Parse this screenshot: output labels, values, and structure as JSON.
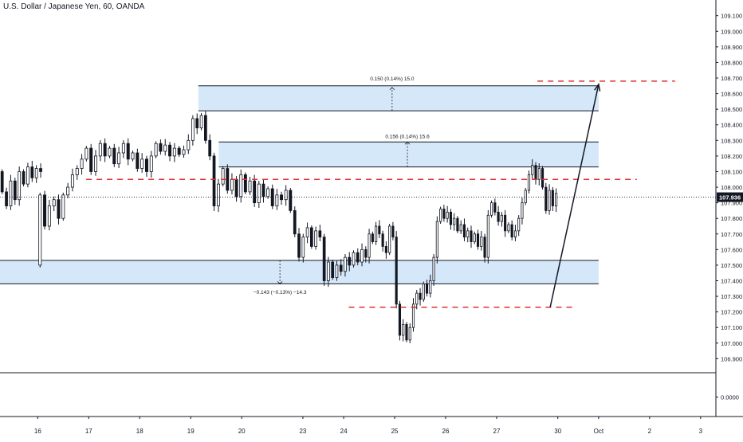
{
  "header": {
    "title": "U.S. Dollar / Japanese Yen, 60, OANDA"
  },
  "colors": {
    "up": "#ffffff",
    "down": "#131722",
    "outline": "#131722",
    "zone_fill": "#d5e8f9",
    "zone_stroke": "#131722",
    "level_line": "#e03131",
    "last_price_bg": "#131722",
    "grid_axis": "#131722",
    "text": "#131722"
  },
  "chart_data": {
    "type": "candlestick",
    "title": "U.S. Dollar / Japanese Yen, 60, OANDA",
    "ylim": [
      106.81,
      109.17
    ],
    "y_ticks": [
      {
        "value": 109.1,
        "label": "109.100"
      },
      {
        "value": 109.0,
        "label": "109.000"
      },
      {
        "value": 108.9,
        "label": "108.900"
      },
      {
        "value": 108.8,
        "label": "108.800"
      },
      {
        "value": 108.7,
        "label": "108.700"
      },
      {
        "value": 108.6,
        "label": "108.600"
      },
      {
        "value": 108.5,
        "label": "108.500"
      },
      {
        "value": 108.4,
        "label": "108.400"
      },
      {
        "value": 108.3,
        "label": "108.300"
      },
      {
        "value": 108.2,
        "label": "108.200"
      },
      {
        "value": 108.1,
        "label": "108.100"
      },
      {
        "value": 108.0,
        "label": "108.000"
      },
      {
        "value": 107.9,
        "label": "107.900"
      },
      {
        "value": 107.8,
        "label": "107.800"
      },
      {
        "value": 107.7,
        "label": "107.700"
      },
      {
        "value": 107.6,
        "label": "107.600"
      },
      {
        "value": 107.5,
        "label": "107.500"
      },
      {
        "value": 107.4,
        "label": "107.400"
      },
      {
        "value": 107.3,
        "label": "107.300"
      },
      {
        "value": 107.2,
        "label": "107.200"
      },
      {
        "value": 107.1,
        "label": "107.100"
      },
      {
        "value": 107.0,
        "label": "107.000"
      },
      {
        "value": 106.9,
        "label": "106.900"
      }
    ],
    "last_price": {
      "value": 107.936,
      "label": "107.936"
    },
    "indicator_pane": {
      "ylim": [
        -1,
        1
      ],
      "tick": {
        "value": 0,
        "label": "0.0000"
      }
    },
    "x_ticks": [
      {
        "x": 0.6,
        "label": "16"
      },
      {
        "x": 1.6,
        "label": "17"
      },
      {
        "x": 2.6,
        "label": "18"
      },
      {
        "x": 3.6,
        "label": "19"
      },
      {
        "x": 4.6,
        "label": "20"
      },
      {
        "x": 5.8,
        "label": "23"
      },
      {
        "x": 6.6,
        "label": "24"
      },
      {
        "x": 7.6,
        "label": "25"
      },
      {
        "x": 8.6,
        "label": "26"
      },
      {
        "x": 9.6,
        "label": "27"
      },
      {
        "x": 10.8,
        "label": "30"
      },
      {
        "x": 11.6,
        "label": "Oct"
      },
      {
        "x": 12.6,
        "label": "2"
      },
      {
        "x": 13.6,
        "label": "3"
      }
    ],
    "xlim": [
      -0.14,
      13.9
    ],
    "series": [
      {
        "start": -0.14,
        "end": 0.7,
        "points": [
          [
            108.1,
            107.97
          ],
          [
            107.97,
            107.88
          ],
          [
            107.88,
            108.04
          ],
          [
            108.04,
            107.92
          ],
          [
            107.92,
            108.1
          ],
          [
            108.1,
            108.02
          ],
          [
            108.02,
            108.13
          ],
          [
            108.13,
            108.06
          ],
          [
            108.06,
            108.12
          ],
          [
            108.12,
            108.1
          ]
        ]
      },
      {
        "start": 0.6,
        "end": 3.6,
        "points": [
          [
            107.5,
            107.95
          ],
          [
            107.95,
            107.75
          ],
          [
            107.75,
            107.88
          ],
          [
            107.88,
            107.92
          ],
          [
            107.92,
            107.8
          ],
          [
            107.8,
            107.95
          ],
          [
            107.95,
            108.0
          ],
          [
            108.0,
            108.08
          ],
          [
            108.08,
            108.12
          ],
          [
            108.12,
            108.18
          ],
          [
            108.18,
            108.25
          ],
          [
            108.25,
            108.1
          ],
          [
            108.1,
            108.2
          ],
          [
            108.2,
            108.28
          ],
          [
            108.28,
            108.2
          ],
          [
            108.2,
            108.25
          ],
          [
            108.25,
            108.15
          ],
          [
            108.15,
            108.22
          ],
          [
            108.22,
            108.28
          ],
          [
            108.28,
            108.18
          ],
          [
            108.18,
            108.22
          ],
          [
            108.22,
            108.12
          ],
          [
            108.12,
            108.18
          ],
          [
            108.18,
            108.1
          ],
          [
            108.1,
            108.2
          ],
          [
            108.2,
            108.28
          ],
          [
            108.28,
            108.23
          ],
          [
            108.23,
            108.27
          ],
          [
            108.27,
            108.2
          ],
          [
            108.2,
            108.25
          ],
          [
            108.25,
            108.21
          ],
          [
            108.21,
            108.24
          ],
          [
            108.24,
            108.3
          ]
        ]
      },
      {
        "start": 3.6,
        "end": 4.1,
        "points": [
          [
            108.3,
            108.44
          ],
          [
            108.44,
            108.38
          ],
          [
            108.38,
            108.46
          ],
          [
            108.46,
            108.3
          ],
          [
            108.3,
            108.2
          ],
          [
            108.2,
            107.88
          ]
        ]
      },
      {
        "start": 4.1,
        "end": 5.6,
        "points": [
          [
            107.88,
            108.02
          ],
          [
            108.02,
            108.12
          ],
          [
            108.12,
            107.98
          ],
          [
            107.98,
            108.05
          ],
          [
            108.05,
            107.94
          ],
          [
            107.94,
            108.08
          ],
          [
            108.08,
            107.97
          ],
          [
            107.97,
            108.04
          ],
          [
            108.04,
            107.9
          ],
          [
            107.9,
            108.02
          ],
          [
            108.02,
            107.94
          ],
          [
            107.94,
            107.99
          ],
          [
            107.99,
            107.88
          ],
          [
            107.88,
            107.95
          ],
          [
            107.95,
            107.92
          ],
          [
            107.92,
            107.98
          ],
          [
            107.98,
            107.85
          ]
        ]
      },
      {
        "start": 5.6,
        "end": 7.0,
        "points": [
          [
            107.85,
            107.7
          ],
          [
            107.7,
            107.55
          ],
          [
            107.55,
            107.68
          ],
          [
            107.68,
            107.74
          ],
          [
            107.74,
            107.62
          ],
          [
            107.62,
            107.72
          ],
          [
            107.72,
            107.68
          ],
          [
            107.68,
            107.4
          ],
          [
            107.4,
            107.52
          ],
          [
            107.52,
            107.42
          ],
          [
            107.42,
            107.5
          ],
          [
            107.5,
            107.46
          ],
          [
            107.46,
            107.55
          ],
          [
            107.55,
            107.5
          ],
          [
            107.5,
            107.58
          ],
          [
            107.58,
            107.52
          ],
          [
            107.52,
            107.6
          ]
        ]
      },
      {
        "start": 7.0,
        "end": 7.6,
        "points": [
          [
            107.6,
            107.55
          ],
          [
            107.55,
            107.7
          ],
          [
            107.7,
            107.65
          ],
          [
            107.65,
            107.75
          ],
          [
            107.75,
            107.7
          ],
          [
            107.7,
            107.62
          ],
          [
            107.62,
            107.58
          ],
          [
            107.58,
            107.75
          ],
          [
            107.75,
            107.68
          ]
        ]
      },
      {
        "start": 7.6,
        "end": 8.4,
        "points": [
          [
            107.68,
            107.25
          ],
          [
            107.25,
            107.05
          ],
          [
            107.05,
            107.12
          ],
          [
            107.12,
            107.02
          ],
          [
            107.02,
            107.1
          ],
          [
            107.1,
            107.25
          ],
          [
            107.25,
            107.32
          ],
          [
            107.32,
            107.28
          ],
          [
            107.28,
            107.38
          ],
          [
            107.38,
            107.32
          ],
          [
            107.32,
            107.4
          ],
          [
            107.4,
            107.55
          ]
        ]
      },
      {
        "start": 8.4,
        "end": 9.4,
        "points": [
          [
            107.55,
            107.78
          ],
          [
            107.78,
            107.86
          ],
          [
            107.86,
            107.8
          ],
          [
            107.8,
            107.84
          ],
          [
            107.84,
            107.76
          ],
          [
            107.76,
            107.8
          ],
          [
            107.8,
            107.72
          ],
          [
            107.72,
            107.76
          ],
          [
            107.76,
            107.68
          ],
          [
            107.68,
            107.72
          ],
          [
            107.72,
            107.65
          ],
          [
            107.65,
            107.7
          ],
          [
            107.7,
            107.62
          ],
          [
            107.62,
            107.68
          ],
          [
            107.68,
            107.55
          ]
        ]
      },
      {
        "start": 9.4,
        "end": 10.8,
        "points": [
          [
            107.55,
            107.82
          ],
          [
            107.82,
            107.9
          ],
          [
            107.9,
            107.84
          ],
          [
            107.84,
            107.78
          ],
          [
            107.78,
            107.82
          ],
          [
            107.82,
            107.72
          ],
          [
            107.72,
            107.76
          ],
          [
            107.76,
            107.68
          ],
          [
            107.68,
            107.72
          ],
          [
            107.72,
            107.8
          ],
          [
            107.8,
            107.9
          ],
          [
            107.9,
            107.98
          ],
          [
            107.98,
            108.08
          ],
          [
            108.08,
            108.14
          ],
          [
            108.14,
            108.05
          ],
          [
            108.05,
            108.12
          ],
          [
            108.12,
            108.0
          ],
          [
            108.0,
            107.85
          ],
          [
            107.85,
            107.98
          ],
          [
            107.98,
            107.88
          ],
          [
            107.88,
            107.96
          ]
        ]
      }
    ],
    "zones": [
      {
        "name": "zone-upper",
        "x0": 3.75,
        "x1": 11.6,
        "y0": 108.49,
        "y1": 108.65
      },
      {
        "name": "zone-middle",
        "x0": 4.15,
        "x1": 11.6,
        "y0": 108.13,
        "y1": 108.29
      },
      {
        "name": "zone-lower",
        "x0": -0.14,
        "x1": 11.6,
        "y0": 107.38,
        "y1": 107.53
      }
    ],
    "dashed_levels": [
      {
        "name": "level-108-05",
        "x0": 1.55,
        "x1": 12.35,
        "y": 108.05
      },
      {
        "name": "level-107-23",
        "x0": 6.7,
        "x1": 11.15,
        "y": 107.23
      },
      {
        "name": "level-108-68",
        "x0": 10.4,
        "x1": 13.1,
        "y": 108.68
      }
    ],
    "measurements": [
      {
        "name": "measure-upper",
        "x": 7.55,
        "y_from": 108.49,
        "y_to": 108.64,
        "label": "0.150 (0.14%) 15.0",
        "label_y": 108.7,
        "direction": "up"
      },
      {
        "name": "measure-middle",
        "x": 7.85,
        "y_from": 108.13,
        "y_to": 108.29,
        "label": "0.156 (0.14%) 15.6",
        "label_y": 108.33,
        "direction": "up"
      },
      {
        "name": "measure-lower",
        "x": 5.35,
        "y_from": 107.53,
        "y_to": 107.38,
        "label": "−0.143 (−0.13%) −14.3",
        "label_y": 107.33,
        "direction": "down"
      }
    ],
    "trend_arrow": {
      "x0": 10.65,
      "y0": 107.23,
      "x1": 11.6,
      "y1": 108.66
    }
  }
}
